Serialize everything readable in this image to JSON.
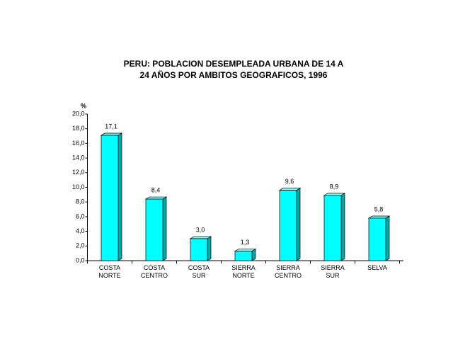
{
  "chart_data": {
    "type": "bar",
    "title": [
      "PERU: POBLACION DESEMPLEADA URBANA DE 14  A",
      "24  AÑOS POR AMBITOS GEOGRAFICOS, 1996"
    ],
    "y_label": "%",
    "categories": [
      "COSTA NORTE",
      "COSTA CENTRO",
      "COSTA SUR",
      "SIERRA NORTE",
      "SIERRA CENTRO",
      "SIERRA SUR",
      "SELVA"
    ],
    "values": [
      17.1,
      8.4,
      3.0,
      1.3,
      9.6,
      8.9,
      5.8
    ],
    "value_labels": [
      "17,1",
      "8,4",
      "3,0",
      "1,3",
      "9,6",
      "8,9",
      "5,8"
    ],
    "color": "#00ffff",
    "ylim": [
      0,
      20
    ],
    "yticks": [
      {
        "value": 0,
        "label": "0,0"
      },
      {
        "value": 2,
        "label": "2,0"
      },
      {
        "value": 4,
        "label": "4,0"
      },
      {
        "value": 6,
        "label": "6,0"
      },
      {
        "value": 8,
        "label": "8,0"
      },
      {
        "value": 10,
        "label": "10,0"
      },
      {
        "value": 12,
        "label": "12,0"
      },
      {
        "value": 14,
        "label": "14,0"
      },
      {
        "value": 16,
        "label": "16,0"
      },
      {
        "value": 18,
        "label": "18,0"
      },
      {
        "value": 20,
        "label": "20,0"
      }
    ],
    "grid": false
  }
}
